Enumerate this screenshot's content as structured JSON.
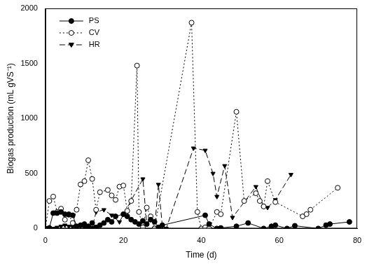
{
  "chart_data": {
    "type": "line",
    "x_label": "Time (d)",
    "y_label": "Biogas production (mL gVS⁻¹)",
    "xlim": [
      0,
      80
    ],
    "xticks": [
      0,
      20,
      40,
      60,
      80
    ],
    "ylim": [
      0,
      2000
    ],
    "yticks": [
      0,
      500,
      1000,
      1500,
      2000
    ],
    "grid": false,
    "legend": "upper left",
    "series": [
      {
        "name": "PS",
        "color": "#000000",
        "marker": "circle",
        "line_style": "solid",
        "x": [
          0,
          1,
          2,
          3,
          4,
          5,
          6,
          7,
          8,
          9,
          10,
          11,
          12,
          13,
          14,
          15,
          16,
          17,
          18,
          20,
          21,
          22,
          23,
          24,
          25,
          26,
          27,
          28,
          29,
          30,
          41,
          42,
          44,
          45,
          49,
          52,
          56,
          58,
          59,
          62,
          64,
          70,
          72,
          73,
          78
        ],
        "values": [
          0,
          5,
          140,
          140,
          150,
          130,
          125,
          120,
          20,
          30,
          40,
          20,
          50,
          10,
          30,
          50,
          80,
          60,
          110,
          130,
          110,
          80,
          60,
          40,
          70,
          40,
          80,
          60,
          10,
          30,
          120,
          40,
          0,
          5,
          20,
          50,
          0,
          20,
          30,
          0,
          25,
          0,
          30,
          40,
          60
        ]
      },
      {
        "name": "CV",
        "color": "#000000",
        "marker": "circle_open",
        "line_style": "dotted",
        "x": [
          0,
          1,
          2,
          3,
          4,
          5,
          6,
          7,
          8,
          9,
          10,
          11,
          12,
          13,
          14,
          16,
          17,
          18,
          19,
          20,
          21,
          22,
          23.5,
          24,
          25,
          26,
          27,
          28,
          37.5,
          39,
          40,
          41,
          42,
          44,
          45,
          49,
          51,
          54,
          55,
          56,
          57,
          59,
          66,
          67,
          68,
          75
        ],
        "values": [
          0,
          250,
          290,
          150,
          180,
          80,
          130,
          50,
          170,
          400,
          430,
          620,
          450,
          170,
          330,
          350,
          300,
          260,
          380,
          390,
          160,
          250,
          1480,
          150,
          10,
          190,
          110,
          0,
          1870,
          150,
          0,
          10,
          0,
          150,
          130,
          1060,
          250,
          320,
          250,
          200,
          430,
          240,
          110,
          130,
          170,
          370
        ]
      },
      {
        "name": "HR",
        "color": "#000000",
        "marker": "triangle_down",
        "line_style": "dashed",
        "x": [
          0,
          2,
          3,
          4,
          5,
          6,
          7,
          8,
          9,
          10,
          11,
          12,
          13,
          15,
          17,
          19,
          25,
          26,
          27,
          28,
          29,
          30,
          31,
          38,
          41,
          43,
          44,
          46,
          48,
          54,
          56,
          57,
          59,
          63
        ],
        "values": [
          0,
          0,
          10,
          20,
          30,
          20,
          15,
          10,
          20,
          10,
          5,
          10,
          150,
          170,
          120,
          60,
          450,
          40,
          100,
          0,
          400,
          20,
          0,
          730,
          710,
          500,
          290,
          570,
          100,
          380,
          200,
          190,
          260,
          490
        ]
      }
    ]
  }
}
